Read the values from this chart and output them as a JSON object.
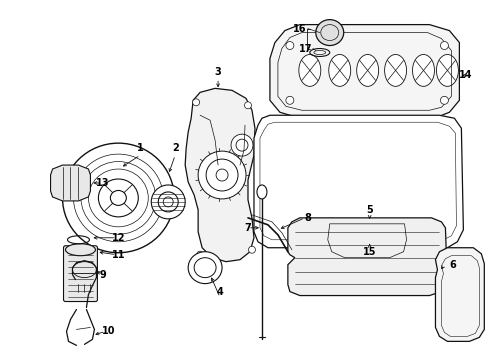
{
  "background_color": "#ffffff",
  "line_color": "#111111",
  "fig_width": 4.89,
  "fig_height": 3.6,
  "dpi": 100
}
